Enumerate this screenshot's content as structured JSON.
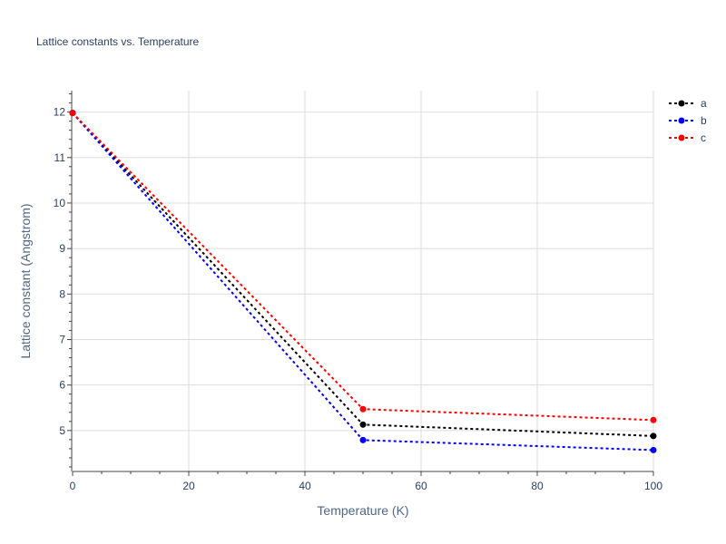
{
  "chart_data": {
    "type": "line",
    "title": "Lattice constants vs. Temperature",
    "xlabel": "Temperature (K)",
    "ylabel": "Lattice constant (Angstrom)",
    "xlim": [
      0,
      100
    ],
    "ylim": [
      4.1,
      12.47
    ],
    "x_ticks": [
      0,
      20,
      40,
      60,
      80,
      100
    ],
    "y_ticks": [
      5,
      6,
      7,
      8,
      9,
      10,
      11,
      12
    ],
    "grid": true,
    "legend_position": "top-right",
    "x": [
      0,
      50,
      100
    ],
    "series": [
      {
        "name": "a",
        "color": "#000000",
        "values": [
          11.98,
          5.13,
          4.88
        ]
      },
      {
        "name": "b",
        "color": "#0000ff",
        "values": [
          11.98,
          4.79,
          4.57
        ]
      },
      {
        "name": "c",
        "color": "#ff0000",
        "values": [
          11.98,
          5.47,
          5.23
        ]
      }
    ]
  }
}
